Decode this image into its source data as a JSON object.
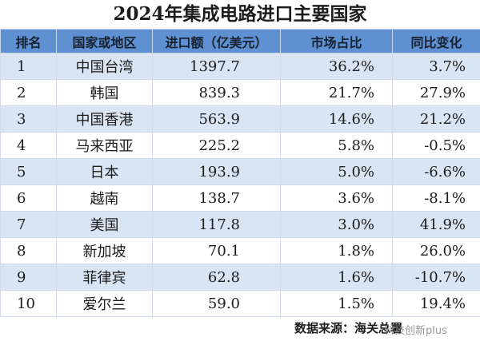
{
  "header": {
    "title": "2024年集成电路进口主要国家"
  },
  "table": {
    "columns": [
      "排名",
      "国家或地区",
      "进口额（亿美元）",
      "市场占比",
      "同比变化"
    ],
    "rows": [
      [
        "1",
        "中国台湾",
        "1397.7",
        "36.2%",
        "3.7%"
      ],
      [
        "2",
        "韩国",
        "839.3",
        "21.7%",
        "27.9%"
      ],
      [
        "3",
        "中国香港",
        "563.9",
        "14.6%",
        "21.2%"
      ],
      [
        "4",
        "马来西亚",
        "225.2",
        "5.8%",
        "-0.5%"
      ],
      [
        "5",
        "日本",
        "193.9",
        "5.0%",
        "-6.6%"
      ],
      [
        "6",
        "越南",
        "138.7",
        "3.6%",
        "-8.1%"
      ],
      [
        "7",
        "美国",
        "117.8",
        "3.0%",
        "41.9%"
      ],
      [
        "8",
        "新加坡",
        "70.1",
        "1.8%",
        "26.0%"
      ],
      [
        "9",
        "菲律宾",
        "62.8",
        "1.6%",
        "-10.7%"
      ],
      [
        "10",
        "爱尔兰",
        "59.0",
        "1.5%",
        "19.4%"
      ]
    ]
  },
  "footer": {
    "source": "数据来源：海关总署",
    "watermark": "科技创新plus"
  }
}
